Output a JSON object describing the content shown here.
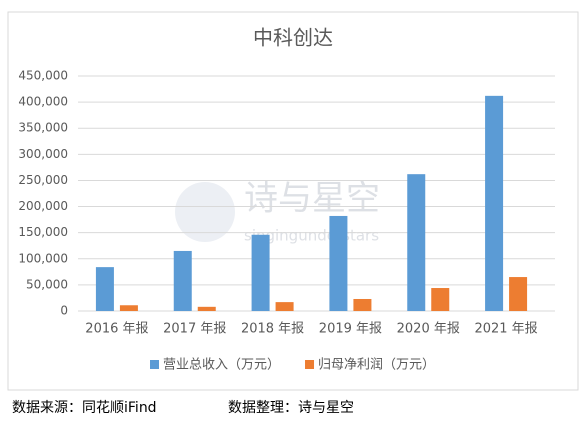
{
  "chart_data": {
    "type": "bar",
    "title": "中科创达",
    "categories": [
      "2016 年报",
      "2017 年报",
      "2018 年报",
      "2019 年报",
      "2020 年报",
      "2021 年报"
    ],
    "series": [
      {
        "name": "营业总收入（万元）",
        "color": "#5b9bd5",
        "values": [
          84000,
          115000,
          146000,
          182000,
          262000,
          412000
        ]
      },
      {
        "name": "归母净利润（万元）",
        "color": "#ed7d31",
        "values": [
          11000,
          8000,
          17000,
          23000,
          44000,
          65000
        ]
      }
    ],
    "ylim": [
      0,
      450000
    ],
    "yticks": [
      0,
      {
        "value": 50000,
        "label": "50,000"
      },
      {
        "value": 100000,
        "label": "100,000"
      },
      {
        "value": 150000,
        "label": "150,000"
      },
      {
        "value": 200000,
        "label": "200,000"
      },
      {
        "value": 250000,
        "label": "250,000"
      },
      {
        "value": 300000,
        "label": "300,000"
      },
      {
        "value": 350000,
        "label": "350,000"
      },
      {
        "value": 400000,
        "label": "400,000"
      },
      {
        "value": 450000,
        "label": "450,000"
      }
    ],
    "grid": true,
    "legend": "bottom"
  },
  "watermark": {
    "title": "诗与星空",
    "subtitle": "singingunderstars"
  },
  "footer": {
    "source": "数据来源：同花顺iFind",
    "editor": "数据整理：诗与星空"
  }
}
